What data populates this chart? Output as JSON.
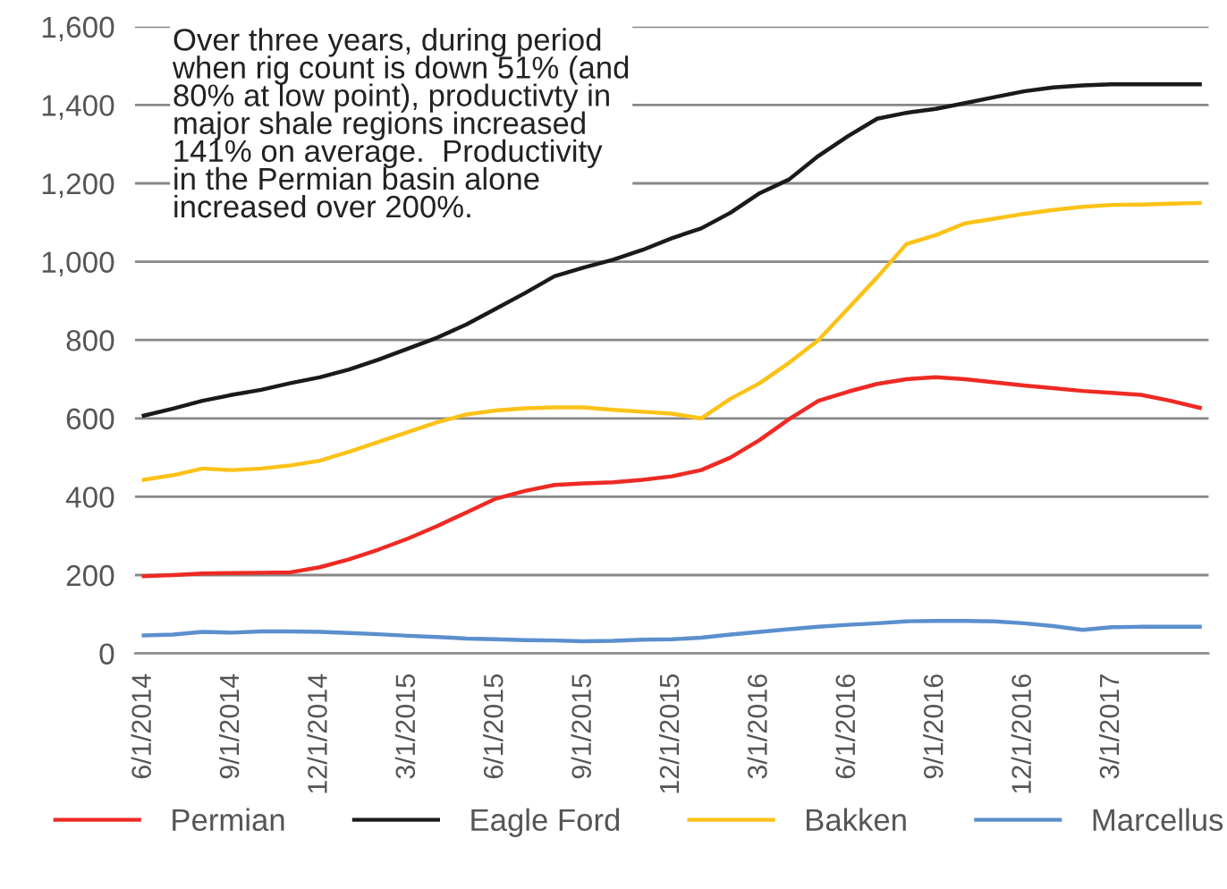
{
  "chart_data": {
    "type": "line",
    "categories": [
      "6/1/2014",
      null,
      null,
      "9/1/2014",
      null,
      null,
      "12/1/2014",
      null,
      null,
      "3/1/2015",
      null,
      null,
      "6/1/2015",
      null,
      null,
      "9/1/2015",
      null,
      null,
      "12/1/2015",
      null,
      null,
      "3/1/2016",
      null,
      null,
      "6/1/2016",
      null,
      null,
      "9/1/2016",
      null,
      null,
      "12/1/2016",
      null,
      null,
      "3/1/2017",
      null,
      null,
      null
    ],
    "series": [
      {
        "name": "Permian",
        "color": "#ee2a24",
        "values": [
          197,
          200,
          204,
          205,
          206,
          207,
          220,
          240,
          265,
          293,
          325,
          360,
          395,
          415,
          430,
          434,
          437,
          443,
          452,
          468,
          500,
          545,
          598,
          645,
          668,
          688,
          700,
          705,
          700,
          692,
          684,
          677,
          670,
          665,
          660,
          645,
          627
        ]
      },
      {
        "name": "Eagle Ford",
        "color": "#1a1a1a",
        "values": [
          607,
          625,
          645,
          660,
          673,
          690,
          705,
          725,
          750,
          778,
          806,
          840,
          880,
          920,
          963,
          985,
          1005,
          1030,
          1060,
          1085,
          1125,
          1175,
          1210,
          1270,
          1320,
          1365,
          1380,
          1390,
          1405,
          1420,
          1435,
          1445,
          1450,
          1453,
          1453,
          1453,
          1453
        ]
      },
      {
        "name": "Bakken",
        "color": "#fbc217",
        "values": [
          443,
          455,
          472,
          468,
          472,
          480,
          492,
          515,
          540,
          565,
          590,
          610,
          620,
          626,
          628,
          628,
          622,
          617,
          612,
          600,
          650,
          690,
          742,
          800,
          880,
          960,
          1045,
          1068,
          1098,
          1110,
          1122,
          1132,
          1140,
          1145,
          1146,
          1148,
          1150
        ]
      },
      {
        "name": "Marcellus",
        "color": "#5b8fce",
        "values": [
          46,
          48,
          55,
          53,
          56,
          56,
          55,
          52,
          49,
          45,
          42,
          38,
          36,
          34,
          33,
          31,
          32,
          35,
          36,
          40,
          48,
          55,
          62,
          68,
          73,
          77,
          82,
          83,
          83,
          82,
          77,
          70,
          60,
          67,
          68,
          68,
          68
        ]
      }
    ],
    "ylim": [
      0,
      1600
    ],
    "yticks": [
      0,
      200,
      400,
      600,
      800,
      {
        "value": 1000,
        "label": "1,000"
      },
      {
        "value": 1200,
        "label": "1,200"
      },
      {
        "value": 1400,
        "label": "1,400"
      },
      {
        "value": 1600,
        "label": "1,600"
      }
    ],
    "grid": "y",
    "legend": "bottom",
    "marker": "none",
    "line_style": "solid",
    "annotations": [
      "Over three years, during period\nwhen rig count is down 51% (and\n80% at low point), productivty in\nmajor shale regions increased\n141% on average.  Productivity\nin the Permian basin alone\nincreased over 200%."
    ]
  }
}
